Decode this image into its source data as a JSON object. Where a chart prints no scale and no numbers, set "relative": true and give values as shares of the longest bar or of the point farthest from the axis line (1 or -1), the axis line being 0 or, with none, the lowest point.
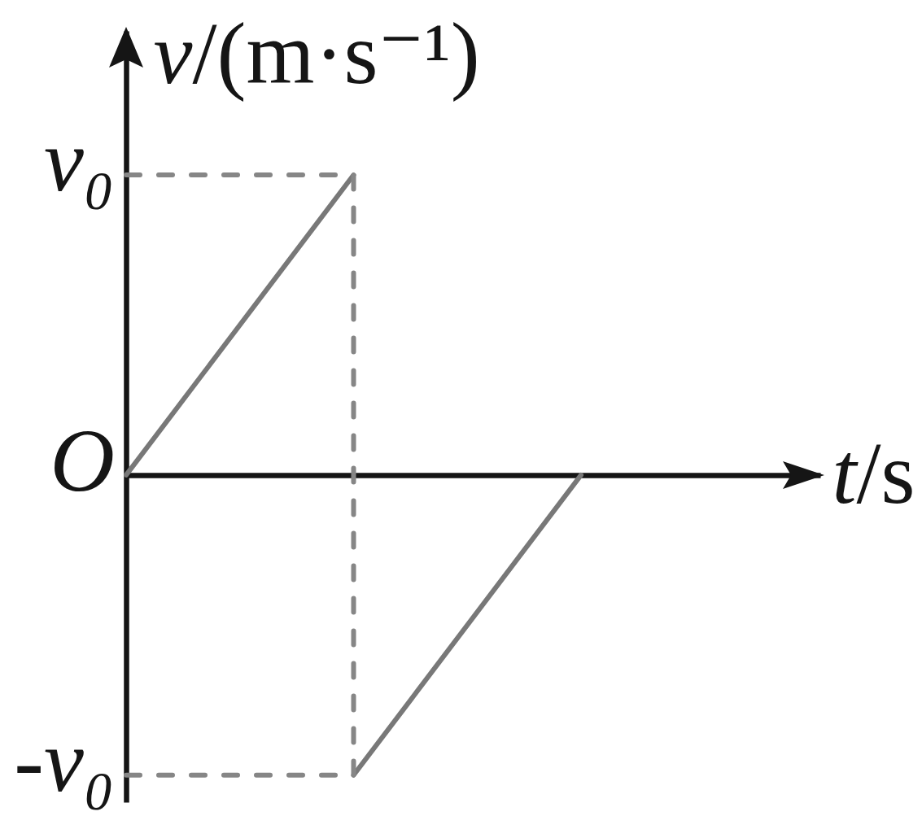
{
  "chart_data": {
    "type": "line",
    "xlabel": "t/s",
    "ylabel": "v/(m·s⁻¹)",
    "relative": true,
    "categories": [
      null,
      null,
      null
    ],
    "series": [
      {
        "color": "#787878",
        "values": [
          0,
          1,
          null
        ]
      },
      {
        "color": "#787878",
        "values": [
          null,
          -1,
          0
        ]
      },
      {
        "type": "step",
        "color": "#868686",
        "line_style": "dashed",
        "values": [
          1,
          -1,
          null
        ]
      },
      {
        "color": "#868686",
        "line_style": "dashed",
        "values": [
          -1,
          -1,
          null
        ]
      }
    ],
    "annotations": [
      "v₀",
      "O",
      "-v₀"
    ],
    "grid": false
  }
}
